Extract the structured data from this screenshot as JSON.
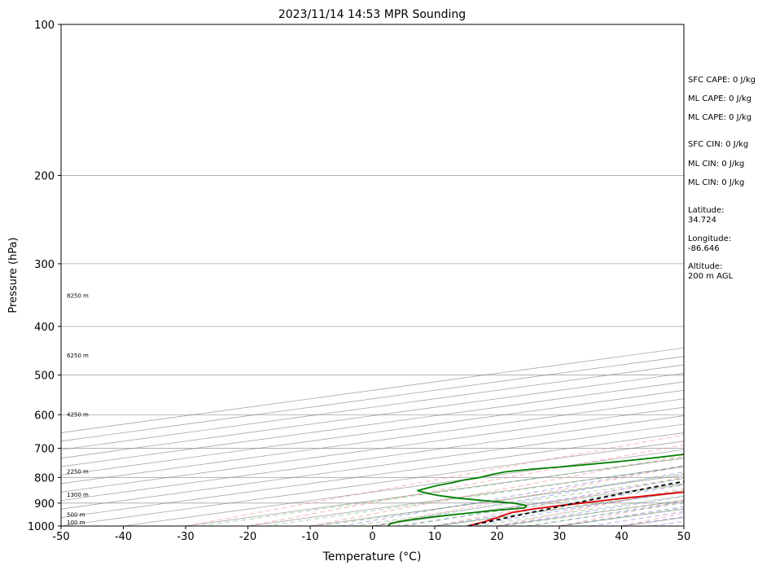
{
  "chart_data": {
    "type": "line",
    "title": "2023/11/14 14:53 MPR Sounding",
    "xlabel": "Temperature (°C)",
    "ylabel": "Pressure (hPa)",
    "xlim": [
      -50,
      50
    ],
    "ylim": [
      1000,
      100
    ],
    "y_scale": "log",
    "skew": "skew-T log-P",
    "grid": true,
    "x_ticks": [
      "-50",
      "-40",
      "-30",
      "-20",
      "-10",
      "0",
      "10",
      "20",
      "30",
      "40",
      "50"
    ],
    "y_ticks": [
      "100",
      "200",
      "300",
      "400",
      "500",
      "600",
      "700",
      "800",
      "900",
      "1000"
    ],
    "colors": {
      "temperature": "#e00000",
      "dewpoint": "#008000",
      "parcel": "#000000",
      "dry_adiabats": "#f08080",
      "moist_adiabats": "#6a5acd",
      "mixing_ratio": "#3a9a3a",
      "isotherms": "#808080"
    },
    "height_labels": [
      {
        "text": "100 m",
        "p": 986
      },
      {
        "text": "500 m",
        "p": 950
      },
      {
        "text": "1300 m",
        "p": 868
      },
      {
        "text": "2250 m",
        "p": 780
      },
      {
        "text": "4250 m",
        "p": 600
      },
      {
        "text": "6250 m",
        "p": 458
      },
      {
        "text": "8250 m",
        "p": 348
      }
    ],
    "series": [
      {
        "name": "Temperature",
        "points": [
          [
            1000,
            15.3
          ],
          [
            980,
            12.8
          ],
          [
            960,
            9.8
          ],
          [
            950,
            8.0
          ],
          [
            940,
            6.5
          ],
          [
            925,
            5.7
          ],
          [
            910,
            6.0
          ],
          [
            900,
            6.6
          ],
          [
            880,
            7.5
          ],
          [
            860,
            9.5
          ],
          [
            850,
            10.8
          ],
          [
            830,
            12.8
          ],
          [
            815,
            14.3
          ],
          [
            800,
            15.4
          ],
          [
            780,
            16.2
          ],
          [
            760,
            16.6
          ],
          [
            740,
            16.8
          ],
          [
            720,
            16.3
          ],
          [
            700,
            15.4
          ],
          [
            670,
            13.4
          ],
          [
            640,
            11.2
          ],
          [
            620,
            9.4
          ],
          [
            600,
            8.5
          ],
          [
            580,
            7.8
          ],
          [
            560,
            6.6
          ],
          [
            540,
            5.3
          ],
          [
            520,
            3.8
          ],
          [
            500,
            2.0
          ],
          [
            480,
            0.8
          ],
          [
            460,
            -1.0
          ],
          [
            440,
            -3.5
          ],
          [
            420,
            -6.3
          ],
          [
            400,
            -8.3
          ],
          [
            385,
            -9.6
          ],
          [
            370,
            -11.6
          ],
          [
            350,
            -14.2
          ],
          [
            330,
            -17.0
          ],
          [
            310,
            -20.3
          ],
          [
            290,
            -23.0
          ],
          [
            280,
            -24.0
          ]
        ]
      },
      {
        "name": "Dewpoint",
        "points": [
          [
            1000,
            2.5
          ],
          [
            990,
            0.3
          ],
          [
            980,
            -1.0
          ],
          [
            970,
            -1.3
          ],
          [
            960,
            -1.3
          ],
          [
            950,
            -0.5
          ],
          [
            940,
            0.5
          ],
          [
            930,
            1.3
          ],
          [
            920,
            3.0
          ],
          [
            910,
            0.5
          ],
          [
            900,
            -4.5
          ],
          [
            890,
            -12.0
          ],
          [
            880,
            -19.0
          ],
          [
            870,
            -25.0
          ],
          [
            860,
            -30.0
          ],
          [
            850,
            -34.5
          ],
          [
            840,
            -36.0
          ],
          [
            830,
            -37.5
          ],
          [
            820,
            -38.2
          ],
          [
            810,
            -39.5
          ],
          [
            800,
            -40.0
          ],
          [
            790,
            -41.5
          ],
          [
            780,
            -42.5
          ],
          [
            770,
            -41.5
          ],
          [
            760,
            -39.0
          ],
          [
            745,
            -36.5
          ],
          [
            730,
            -35.0
          ],
          [
            715,
            -34.5
          ],
          [
            700,
            -34.2
          ],
          [
            690,
            -33.0
          ],
          [
            680,
            -32.0
          ],
          [
            670,
            -29.0
          ],
          [
            655,
            -26.5
          ],
          [
            640,
            -25.5
          ],
          [
            625,
            -24.5
          ],
          [
            610,
            -24.3
          ],
          [
            600,
            -24.5
          ],
          [
            585,
            -25.5
          ],
          [
            570,
            -26.0
          ],
          [
            555,
            -26.8
          ],
          [
            540,
            -28.5
          ],
          [
            525,
            -28.0
          ],
          [
            510,
            -30.5
          ],
          [
            495,
            -33.0
          ],
          [
            480,
            -34.5
          ],
          [
            465,
            -35.5
          ],
          [
            450,
            -36.0
          ],
          [
            440,
            -35.5
          ],
          [
            430,
            -36.5
          ],
          [
            420,
            -38.0
          ],
          [
            410,
            -40.5
          ],
          [
            400,
            -41.0
          ],
          [
            390,
            -42.0
          ],
          [
            380,
            -44.0
          ],
          [
            370,
            -45.0
          ],
          [
            360,
            -48.0
          ],
          [
            350,
            -48.0
          ],
          [
            340,
            -51.5
          ],
          [
            325,
            -55.0
          ],
          [
            315,
            -61.0
          ],
          [
            306,
            -76.5
          ],
          [
            304,
            -96.0
          ]
        ]
      },
      {
        "name": "Parcel",
        "points": [
          [
            1000,
            15.3
          ],
          [
            975,
            13.0
          ],
          [
            950,
            10.5
          ],
          [
            925,
            8.2
          ],
          [
            900,
            5.5
          ],
          [
            875,
            3.0
          ],
          [
            850,
            0.5
          ],
          [
            825,
            -1.8
          ],
          [
            810,
            -2.8
          ],
          [
            800,
            -3.0
          ],
          [
            750,
            -5.0
          ],
          [
            700,
            -7.5
          ],
          [
            650,
            -10.5
          ],
          [
            600,
            -14.0
          ],
          [
            550,
            -19.0
          ],
          [
            500,
            -25.5
          ],
          [
            450,
            -33.0
          ],
          [
            400,
            -41.0
          ],
          [
            350,
            -50.0
          ],
          [
            300,
            -60.0
          ],
          [
            275,
            -65.5
          ]
        ]
      }
    ]
  },
  "side_labels": {
    "sfc_cape": "SFC CAPE: 0 J/kg",
    "ml_cape": "ML CAPE: 0 J/kg",
    "ml_cape2": "ML CAPE: 0 J/kg",
    "sfc_cin": "SFC CIN: 0 J/kg",
    "ml_cin": "ML CIN: 0 J/kg",
    "ml_cin2": "ML CIN: 0 J/kg",
    "latitude": "Latitude:\n34.724",
    "longitude": "Longitude:\n-86.646",
    "altitude": "Altitude:\n200 m AGL"
  }
}
